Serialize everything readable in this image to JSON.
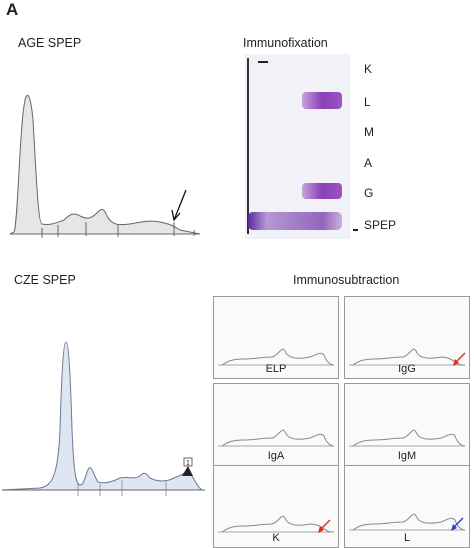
{
  "panel_label": "A",
  "age_spep": {
    "title": "AGE SPEP"
  },
  "immunofixation": {
    "title": "Immunofixation",
    "lanes": [
      "K",
      "L",
      "M",
      "A",
      "G",
      "SPEP"
    ]
  },
  "cze_spep": {
    "title": "CZE SPEP",
    "peak_marker": "1"
  },
  "immunosubtraction": {
    "title": "Immunosubtraction",
    "panels": [
      "ELP",
      "IgG",
      "IgA",
      "IgM",
      "K",
      "L"
    ]
  },
  "colors": {
    "trace": "#666666",
    "age_fill": "#e6e6e6",
    "cze_fill": "#dfe6f2",
    "band": "#8a3fb5",
    "red_arrow": "#e0281e",
    "blue_arrow": "#2a3fd0"
  }
}
